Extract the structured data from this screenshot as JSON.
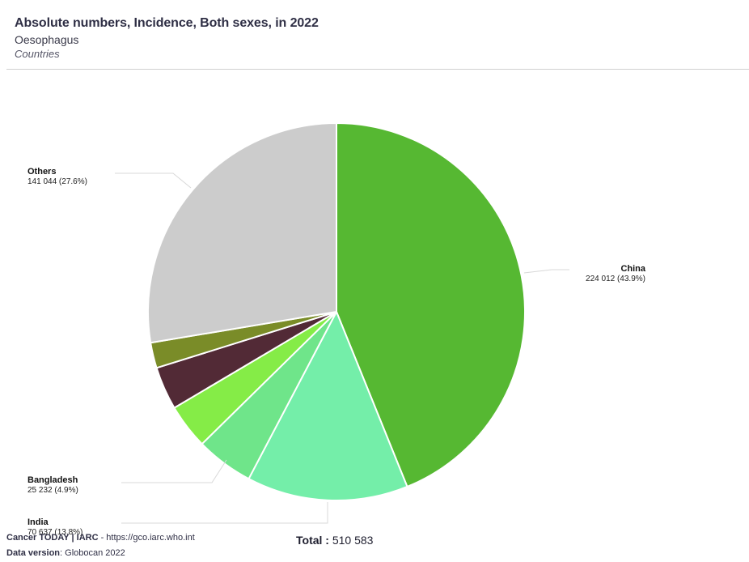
{
  "header": {
    "title": "Absolute numbers, Incidence, Both sexes, in 2022",
    "subtitle": "Oesophagus",
    "scope": "Countries"
  },
  "chart_data": {
    "type": "pie",
    "total_label": "Total :",
    "total_value": "510 583",
    "slices": [
      {
        "name": "China",
        "value": 224012,
        "value_label": "224 012 (43.9%)",
        "color": "#56b832",
        "labeled": true
      },
      {
        "name": "India",
        "value": 70637,
        "value_label": "70 637 (13.8%)",
        "color": "#74eea9",
        "labeled": true
      },
      {
        "name": "Bangladesh",
        "value": 25232,
        "value_label": "25 232 (4.9%)",
        "color": "#6fe58a",
        "labeled": true
      },
      {
        "name": "",
        "value": 19650,
        "value_label": "",
        "color": "#85ec47",
        "labeled": false
      },
      {
        "name": "",
        "value": 18850,
        "value_label": "",
        "color": "#522a36",
        "labeled": false
      },
      {
        "name": "",
        "value": 11158,
        "value_label": "",
        "color": "#7a8c28",
        "labeled": false
      },
      {
        "name": "Others",
        "value": 141044,
        "value_label": "141 044 (27.6%)",
        "color": "#cccccc",
        "labeled": true
      }
    ]
  },
  "footer": {
    "brand": "Cancer TODAY | IARC",
    "link": " - https://gco.iarc.who.int",
    "version_key": "Data version",
    "version_value": ": Globocan 2022"
  }
}
